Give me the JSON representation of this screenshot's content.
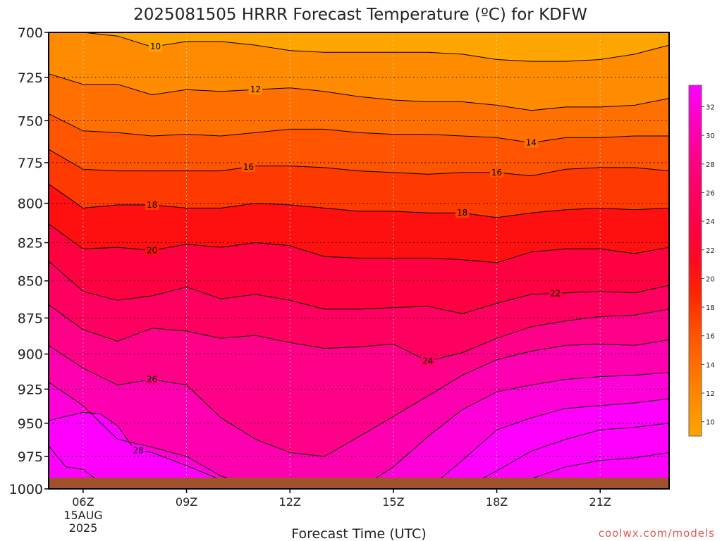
{
  "chart_data": {
    "type": "heatmap",
    "title": "2025081505 HRRR Forecast Temperature (ºC) for KDFW",
    "xlabel": "Forecast Time (UTC)",
    "ylabel": "",
    "x_ticks": [
      "06Z",
      "09Z",
      "12Z",
      "15Z",
      "18Z",
      "21Z"
    ],
    "x_tick_hours": [
      6,
      9,
      12,
      15,
      18,
      21
    ],
    "x_subticks": [
      "15AUG",
      "2025"
    ],
    "xlim": [
      5,
      23
    ],
    "y_ticks": [
      700,
      725,
      750,
      775,
      800,
      825,
      850,
      875,
      900,
      925,
      950,
      975,
      1000
    ],
    "ylim": [
      1000,
      700
    ],
    "y_scale": "log",
    "grid": true,
    "contour_interval": 2,
    "colorbar": {
      "placement": "right",
      "levels": [
        10,
        12,
        14,
        16,
        18,
        20,
        22,
        24,
        26,
        28,
        30,
        32
      ],
      "colors": [
        "#ffa500",
        "#ff8c00",
        "#ff7000",
        "#ff5500",
        "#ff3a00",
        "#ff1010",
        "#ff0040",
        "#ff0060",
        "#ff0088",
        "#ff00b0",
        "#ff00d8",
        "#ff00ff",
        "#ff00ff"
      ]
    },
    "series": [
      {
        "label": "10",
        "label_at": 8.1,
        "x": [
          5,
          6,
          7,
          8,
          9,
          10,
          11,
          12,
          13,
          14,
          15,
          16,
          17,
          18,
          19,
          20,
          21,
          22,
          23
        ],
        "y": [
          700,
          700,
          702,
          708,
          705,
          705,
          707,
          710,
          711,
          711,
          711,
          711,
          712,
          715,
          716,
          716,
          715,
          712,
          707
        ]
      },
      {
        "label": "12",
        "label_at": 11,
        "x": [
          5,
          6,
          7,
          8,
          9,
          10,
          11,
          12,
          13,
          14,
          15,
          16,
          17,
          18,
          19,
          20,
          21,
          22,
          23
        ],
        "y": [
          723,
          729,
          729,
          735,
          732,
          733,
          732,
          731,
          733,
          736,
          738,
          739,
          739,
          741,
          744,
          742,
          742,
          741,
          737
        ]
      },
      {
        "label": "14",
        "label_at": 19,
        "x": [
          5,
          6,
          7,
          8,
          9,
          10,
          11,
          12,
          13,
          14,
          15,
          16,
          17,
          18,
          19,
          20,
          21,
          22,
          23
        ],
        "y": [
          746,
          756,
          757,
          759,
          758,
          759,
          757,
          755,
          755,
          757,
          758,
          758,
          759,
          760,
          763,
          760,
          760,
          759,
          759
        ]
      },
      {
        "label": "16",
        "label_at": 10.8,
        "label2_at": 18,
        "x": [
          5,
          6,
          7,
          8,
          9,
          10,
          11,
          12,
          13,
          14,
          15,
          16,
          17,
          18,
          19,
          20,
          21,
          22,
          23
        ],
        "y": [
          767,
          779,
          780,
          780,
          780,
          780,
          777,
          777,
          778,
          780,
          781,
          782,
          781,
          781,
          783,
          779,
          778,
          778,
          780
        ]
      },
      {
        "label": "18",
        "label_at": 8,
        "label2_at": 17,
        "x": [
          5,
          6,
          7,
          8,
          9,
          10,
          11,
          12,
          13,
          14,
          15,
          16,
          17,
          18,
          19,
          20,
          21,
          22,
          23
        ],
        "y": [
          788,
          803,
          801,
          801,
          803,
          803,
          800,
          801,
          803,
          805,
          805,
          806,
          806,
          809,
          806,
          804,
          803,
          804,
          803
        ]
      },
      {
        "label": "20",
        "label_at": 8,
        "x": [
          5,
          6,
          7,
          8,
          9,
          10,
          11,
          12,
          13,
          14,
          15,
          16,
          17,
          18,
          19,
          20,
          21,
          22,
          23
        ],
        "y": [
          813,
          829,
          828,
          830,
          826,
          828,
          825,
          827,
          834,
          835,
          835,
          835,
          836,
          838,
          831,
          829,
          829,
          832,
          828
        ]
      },
      {
        "label": "22",
        "label_at": 19.7,
        "x": [
          5,
          6,
          7,
          8,
          9,
          10,
          11,
          12,
          13,
          14,
          15,
          16,
          17,
          18,
          19,
          20,
          21,
          22,
          23
        ],
        "y": [
          837,
          857,
          863,
          860,
          854,
          862,
          859,
          863,
          869,
          869,
          868,
          867,
          872,
          865,
          859,
          858,
          857,
          858,
          853
        ]
      },
      {
        "label": "24",
        "label_at": 16,
        "x": [
          5,
          6,
          7,
          8,
          9,
          10,
          11,
          12,
          13,
          14,
          15,
          16,
          17,
          18,
          19,
          20,
          21,
          22,
          23
        ],
        "y": [
          866,
          883,
          891,
          882,
          884,
          889,
          887,
          892,
          896,
          895,
          893,
          905,
          899,
          889,
          881,
          877,
          874,
          873,
          869
        ]
      },
      {
        "label": "26",
        "label_at": 8,
        "x": [
          5,
          6,
          7,
          8,
          9,
          10,
          11,
          12,
          13,
          14,
          15,
          16,
          17,
          18,
          19,
          20,
          21,
          22,
          23
        ],
        "y": [
          894,
          910,
          922,
          918,
          922,
          946,
          962,
          972,
          975,
          960,
          945,
          930,
          915,
          904,
          898,
          894,
          893,
          894,
          890
        ]
      },
      {
        "label": "",
        "x": [
          5,
          6,
          7,
          8,
          9,
          10,
          11,
          12,
          13,
          14,
          15,
          16,
          17,
          18,
          19,
          20,
          21,
          22,
          23
        ],
        "y": [
          920,
          937,
          962,
          968,
          975,
          990,
          998,
          1000,
          1000,
          1000,
          983,
          960,
          940,
          927,
          922,
          918,
          916,
          915,
          913
        ]
      },
      {
        "label": "28",
        "label_at": 7.6,
        "x": [
          5,
          6,
          6.5,
          7,
          7.5,
          8,
          9,
          10,
          10.8
        ],
        "y": [
          948,
          942,
          943,
          952,
          970,
          972,
          982,
          993,
          1000
        ]
      },
      {
        "label": "",
        "x": [
          16,
          17,
          18,
          19,
          20,
          21,
          22,
          23
        ],
        "y": [
          1000,
          978,
          955,
          946,
          939,
          937,
          935,
          932
        ]
      },
      {
        "label": "",
        "x": [
          17,
          18,
          19,
          20,
          21,
          22,
          23
        ],
        "y": [
          1000,
          986,
          971,
          962,
          955,
          953,
          950
        ]
      },
      {
        "label": "",
        "x": [
          18.5,
          19,
          20,
          21,
          22,
          23
        ],
        "y": [
          1000,
          992,
          983,
          978,
          976,
          972
        ]
      },
      {
        "label": "",
        "x": [
          5,
          5.5,
          6,
          6.5,
          7
        ],
        "y": [
          967,
          983,
          985,
          995,
          1000
        ]
      }
    ]
  },
  "colorbar_labels": [
    "32",
    "30",
    "28",
    "26",
    "24",
    "22",
    "20",
    "18",
    "16",
    "14",
    "12",
    "10"
  ],
  "credit": "coolwx.com/models"
}
